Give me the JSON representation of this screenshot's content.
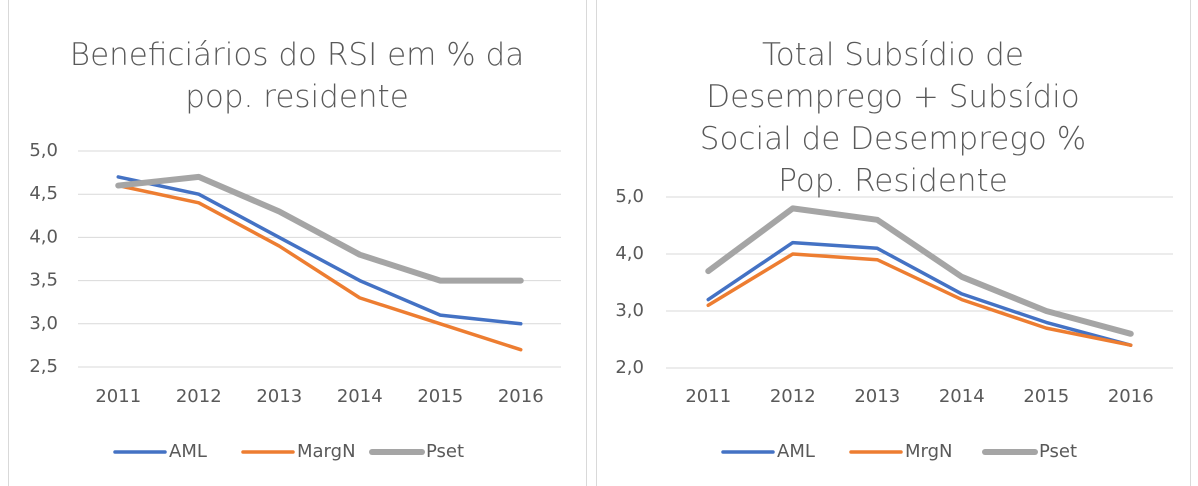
{
  "chart_data": [
    {
      "type": "line",
      "title": "Beneficiários do RSI em % da pop. residente",
      "categories": [
        "2011",
        "2012",
        "2013",
        "2014",
        "2015",
        "2016"
      ],
      "series": [
        {
          "name": "AML",
          "color": "#4472c4",
          "values": [
            4.7,
            4.5,
            4.0,
            3.5,
            3.1,
            3.0
          ]
        },
        {
          "name": "MargN",
          "color": "#ed7d31",
          "values": [
            4.6,
            4.4,
            3.9,
            3.3,
            3.0,
            2.7
          ]
        },
        {
          "name": "Pset",
          "color": "#a5a5a5",
          "values": [
            4.6,
            4.7,
            4.3,
            3.8,
            3.5,
            3.5
          ]
        }
      ],
      "ylim": [
        2.5,
        5.0
      ],
      "yticks": [
        {
          "value": 2.5,
          "label": "2,5"
        },
        {
          "value": 3.0,
          "label": "3,0"
        },
        {
          "value": 3.5,
          "label": "3,5"
        },
        {
          "value": 4.0,
          "label": "4,0"
        },
        {
          "value": 4.5,
          "label": "4,5"
        },
        {
          "value": 5.0,
          "label": "5,0"
        }
      ],
      "grid": true,
      "legend": "bottom"
    },
    {
      "type": "line",
      "title": "Total Subsídio de Desemprego + Subsídio Social de Desemprego % Pop. Residente",
      "categories": [
        "2011",
        "2012",
        "2013",
        "2014",
        "2015",
        "2016"
      ],
      "series": [
        {
          "name": "AML",
          "color": "#4472c4",
          "values": [
            3.2,
            4.2,
            4.1,
            3.3,
            2.8,
            2.4
          ]
        },
        {
          "name": "MrgN",
          "color": "#ed7d31",
          "values": [
            3.1,
            4.0,
            3.9,
            3.2,
            2.7,
            2.4
          ]
        },
        {
          "name": "Pset",
          "color": "#a5a5a5",
          "values": [
            3.7,
            4.8,
            4.6,
            3.6,
            3.0,
            2.6
          ]
        }
      ],
      "ylim": [
        2.0,
        5.0
      ],
      "yticks": [
        {
          "value": 2.0,
          "label": "2,0"
        },
        {
          "value": 3.0,
          "label": "3,0"
        },
        {
          "value": 4.0,
          "label": "4,0"
        },
        {
          "value": 5.0,
          "label": "5,0"
        }
      ],
      "grid": true,
      "legend": "bottom"
    }
  ]
}
